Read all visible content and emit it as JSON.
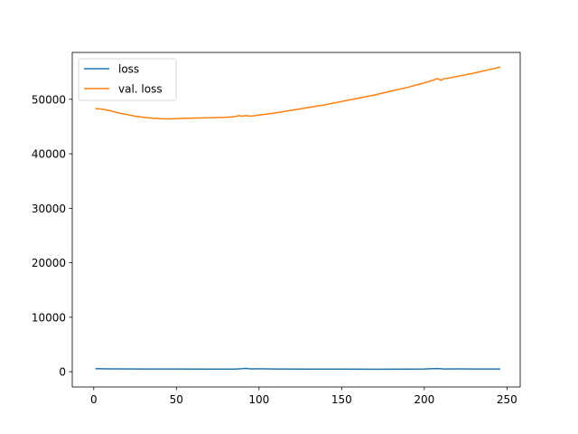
{
  "chart_data": {
    "type": "line",
    "title": "",
    "xlabel": "",
    "ylabel": "",
    "xlim": [
      -13,
      258
    ],
    "ylim": [
      -2800,
      58600
    ],
    "xticks": [
      0,
      50,
      100,
      150,
      200,
      250
    ],
    "yticks": [
      0,
      10000,
      20000,
      30000,
      40000,
      50000
    ],
    "grid": false,
    "legend": "top-left",
    "series": [
      {
        "name": "loss",
        "color": "#1f77b4",
        "x": [
          1,
          10,
          30,
          50,
          70,
          85,
          90,
          92,
          95,
          100,
          110,
          130,
          150,
          170,
          190,
          200,
          205,
          208,
          212,
          220,
          230,
          246
        ],
        "y": [
          550,
          520,
          500,
          490,
          470,
          480,
          560,
          620,
          520,
          530,
          500,
          480,
          470,
          460,
          470,
          490,
          560,
          580,
          500,
          520,
          500,
          490
        ]
      },
      {
        "name": "val. loss",
        "color": "#ff7f0e",
        "x": [
          1,
          5,
          10,
          15,
          20,
          25,
          30,
          35,
          40,
          45,
          50,
          55,
          60,
          70,
          80,
          85,
          88,
          90,
          92,
          95,
          100,
          110,
          120,
          130,
          140,
          150,
          160,
          170,
          180,
          190,
          195,
          200,
          203,
          205,
          208,
          210,
          212,
          215,
          220,
          230,
          240,
          246
        ],
        "y": [
          48300,
          48200,
          47900,
          47500,
          47200,
          46900,
          46700,
          46550,
          46450,
          46400,
          46450,
          46500,
          46550,
          46600,
          46700,
          46800,
          47000,
          46900,
          47000,
          46900,
          47100,
          47500,
          48000,
          48500,
          49000,
          49600,
          50200,
          50800,
          51500,
          52200,
          52600,
          53000,
          53300,
          53500,
          53800,
          53500,
          53800,
          53900,
          54200,
          54800,
          55500,
          55900
        ]
      }
    ]
  }
}
